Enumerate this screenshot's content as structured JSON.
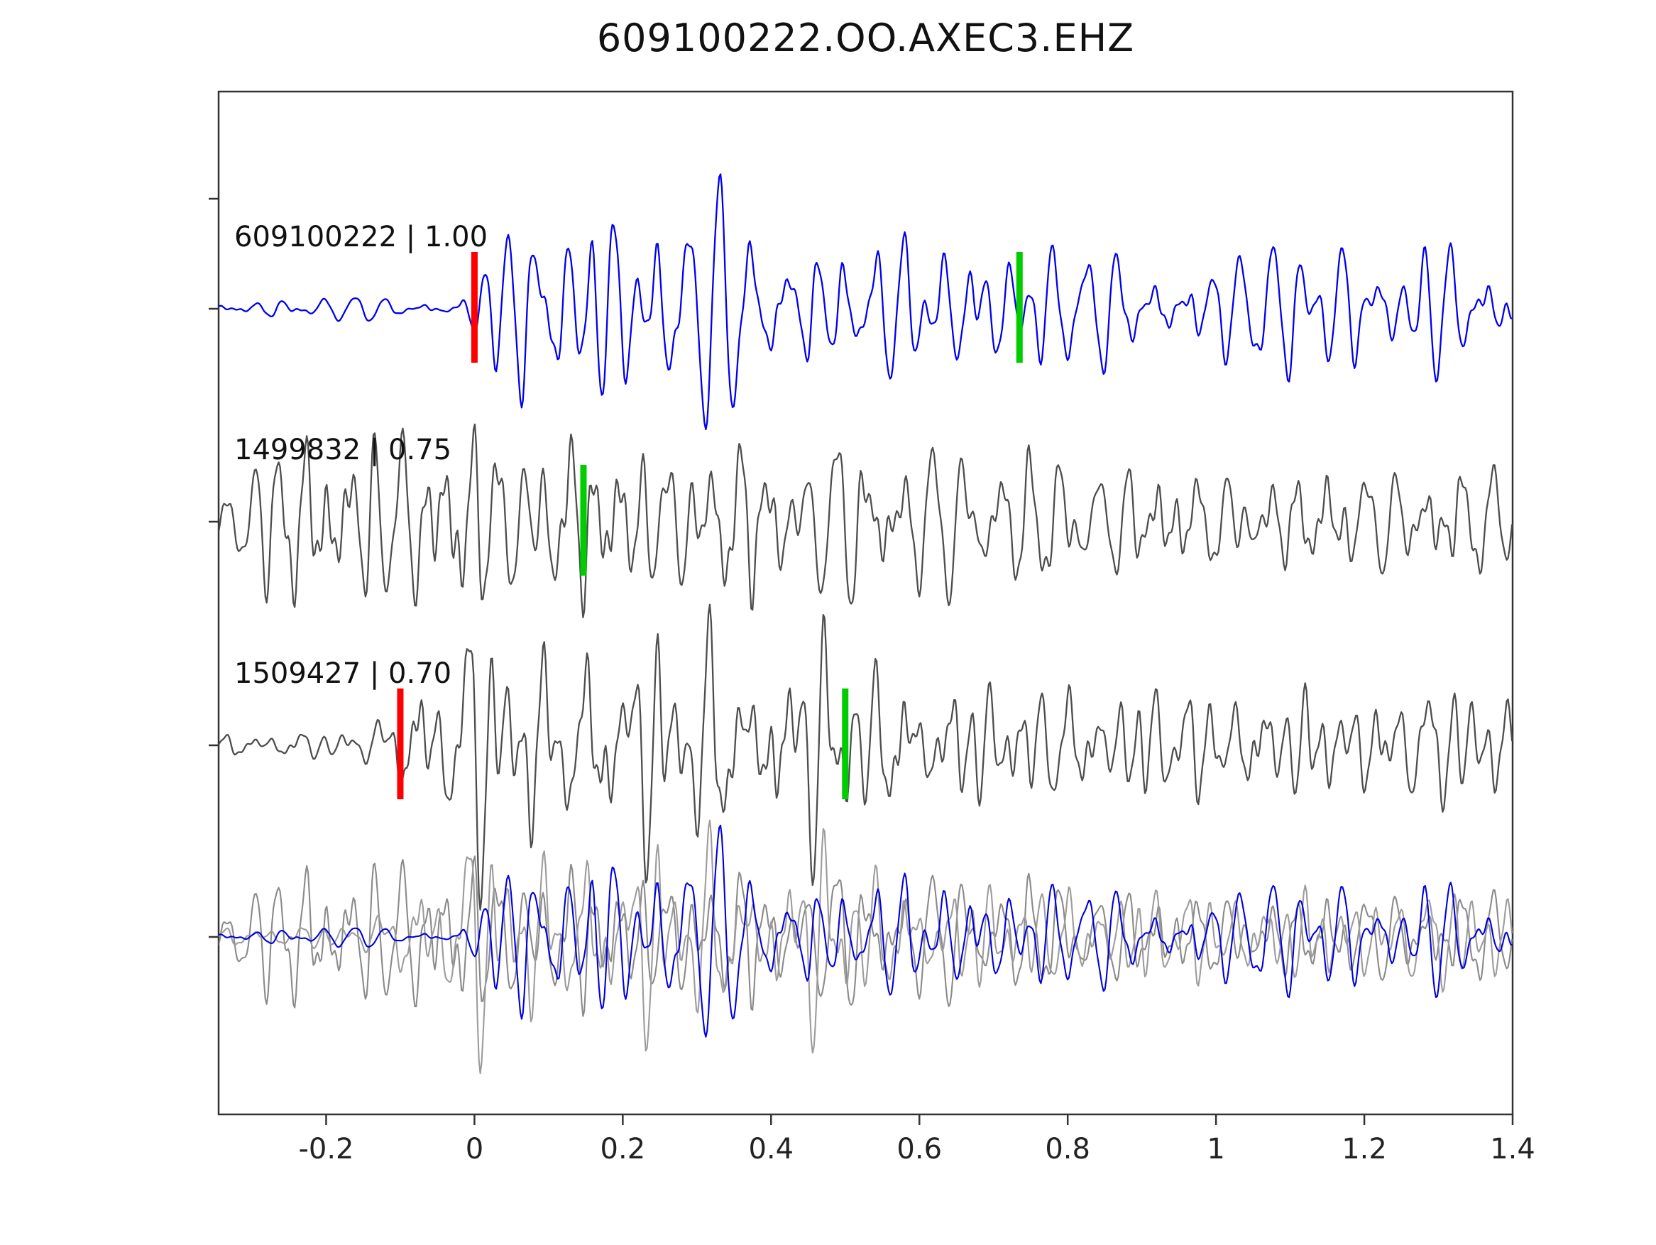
{
  "title": "609100222.OO.AXEC3.EHZ",
  "chart_data": {
    "type": "line",
    "subtype": "seismogram-template-matching",
    "title": "609100222.OO.AXEC3.EHZ",
    "xlabel": "",
    "ylabel": "",
    "xlim": [
      -0.345,
      1.4
    ],
    "grid": false,
    "legend": "none",
    "x_ticks": [
      {
        "v": -0.2,
        "label": "-0.2"
      },
      {
        "v": 0,
        "label": "0"
      },
      {
        "v": 0.2,
        "label": "0.2"
      },
      {
        "v": 0.4,
        "label": "0.4"
      },
      {
        "v": 0.6,
        "label": "0.6"
      },
      {
        "v": 0.8,
        "label": "0.8"
      },
      {
        "v": 1,
        "label": "1"
      },
      {
        "v": 1.2,
        "label": "1.2"
      },
      {
        "v": 1.4,
        "label": "1.4"
      }
    ],
    "marker_colors": {
      "pick-red": "#ff0000",
      "pick-green": "#00cc00"
    },
    "trace_colors": {
      "template": "#0000ee",
      "detection": "#4d4d4d",
      "overlay_gray_1": "#8a8a8a",
      "overlay_gray_2": "#9c9c9c",
      "overlay_blue": "#0000dd"
    },
    "traces": [
      {
        "name": "template-trace",
        "label": "609100222 | 1.00",
        "event_id": "609100222",
        "correlation": 1.0,
        "color_key": "template",
        "picks": [
          {
            "type": "pick-red",
            "x": 0.0
          },
          {
            "type": "pick-green",
            "x": 0.735
          }
        ],
        "envelope": [
          [
            -0.345,
            0.1
          ],
          [
            -0.02,
            0.1
          ],
          [
            0.01,
            0.55
          ],
          [
            0.07,
            1.0
          ],
          [
            0.3,
            1.0
          ],
          [
            0.55,
            0.75
          ],
          [
            0.8,
            0.65
          ],
          [
            1.4,
            0.6
          ]
        ]
      },
      {
        "name": "detection-trace-1",
        "label": "1499832 | 0.75",
        "event_id": "1499832",
        "correlation": 0.75,
        "color_key": "detection",
        "picks": [
          {
            "type": "pick-green",
            "x": 0.147
          }
        ],
        "envelope": [
          [
            -0.345,
            0.55
          ],
          [
            -0.25,
            0.9
          ],
          [
            -0.1,
            1.0
          ],
          [
            0.15,
            0.95
          ],
          [
            0.35,
            0.8
          ],
          [
            0.6,
            0.6
          ],
          [
            1.4,
            0.55
          ]
        ]
      },
      {
        "name": "detection-trace-2",
        "label": "1509427 | 0.70",
        "event_id": "1509427",
        "correlation": 0.7,
        "color_key": "detection",
        "picks": [
          {
            "type": "pick-red",
            "x": -0.1
          },
          {
            "type": "pick-green",
            "x": 0.5
          }
        ],
        "envelope": [
          [
            -0.345,
            0.12
          ],
          [
            -0.15,
            0.12
          ],
          [
            -0.08,
            0.7
          ],
          [
            0.0,
            1.0
          ],
          [
            0.45,
            0.95
          ],
          [
            0.7,
            0.6
          ],
          [
            1.4,
            0.55
          ]
        ]
      },
      {
        "name": "overlay-trace",
        "label": "",
        "overlay_of": [
          1,
          2,
          0
        ],
        "overlay_color_keys": [
          "overlay_gray_1",
          "overlay_gray_2",
          "overlay_blue"
        ]
      }
    ]
  }
}
